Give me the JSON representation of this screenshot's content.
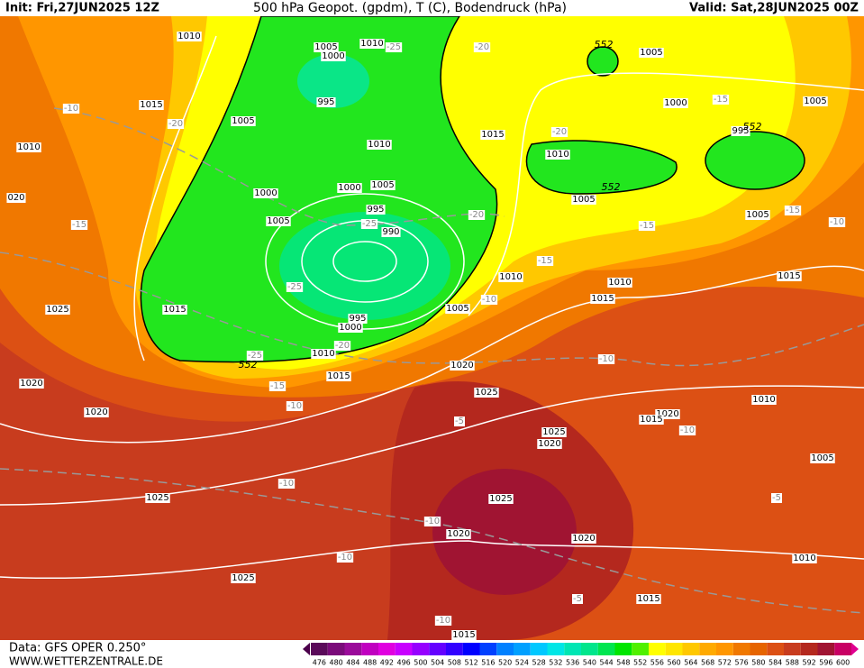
{
  "header": {
    "init": "Init: Fri,27JUN2025 12Z",
    "title": "500 hPa Geopot. (gpdm), T (C), Bodendruck (hPa)",
    "valid": "Valid: Sat,28JUN2025 00Z"
  },
  "footer": {
    "data": "Data: GFS OPER 0.250°",
    "site": "WWW.WETTERZENTRALE.DE"
  },
  "color_scale": {
    "labels": [
      476,
      480,
      484,
      488,
      492,
      496,
      500,
      504,
      508,
      512,
      516,
      520,
      524,
      528,
      532,
      536,
      540,
      544,
      548,
      552,
      556,
      560,
      564,
      568,
      572,
      576,
      580,
      584,
      588,
      592,
      596,
      600
    ],
    "colors": [
      "#5a0a5a",
      "#7a0a7a",
      "#9a0a9a",
      "#c000c0",
      "#e000e0",
      "#c800ff",
      "#9600ff",
      "#6400ff",
      "#3200ff",
      "#0000ff",
      "#0040ff",
      "#0080ff",
      "#00a0ff",
      "#00c8ff",
      "#00e6e6",
      "#00e6b4",
      "#00e68c",
      "#00e650",
      "#00e600",
      "#50f000",
      "#ffff00",
      "#ffe600",
      "#ffc800",
      "#ffaa00",
      "#ff9600",
      "#f07800",
      "#e66400",
      "#dc5014",
      "#c83c1e",
      "#b4281e",
      "#a01432",
      "#c80064"
    ]
  },
  "map": {
    "isobar_labels": [
      "1010",
      "1005",
      "1000",
      "1010",
      "1005",
      "1015",
      "995",
      "1000",
      "1005",
      "1005",
      "1015",
      "1010",
      "1010",
      "1010",
      "995",
      "1000",
      "1000",
      "1005",
      "1005",
      "020",
      "1005",
      "995",
      "990",
      "1005",
      "1010",
      "1010",
      "1015",
      "1015",
      "1025",
      "1015",
      "1005",
      "995",
      "1000",
      "1010",
      "1015",
      "1020",
      "1020",
      "1025",
      "1010",
      "1020",
      "1020",
      "1015",
      "1025",
      "1020",
      "1005",
      "1025",
      "1025",
      "1020",
      "1020",
      "1010",
      "1025",
      "1015",
      "1015"
    ],
    "temperature_labels": [
      "-20",
      "-25",
      "-10",
      "-20",
      "-15",
      "-20",
      "-15",
      "-10",
      "-15",
      "-25",
      "-20",
      "-15",
      "-15",
      "-25",
      "-10",
      "-20",
      "-25",
      "-15",
      "-10",
      "-10",
      "-5",
      "-10",
      "-10",
      "-5",
      "-10",
      "-10",
      "-5",
      "-10"
    ],
    "geopotential_labels": [
      "552",
      "552",
      "552",
      "552"
    ]
  }
}
